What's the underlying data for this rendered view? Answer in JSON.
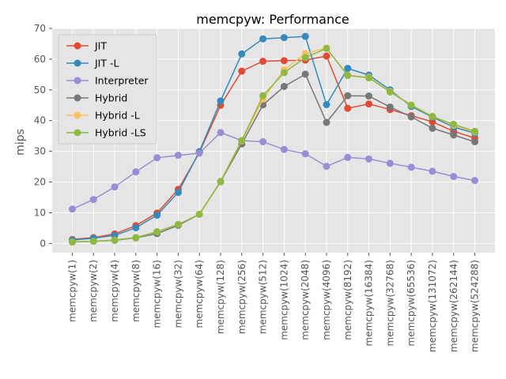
{
  "chart_data": {
    "type": "line",
    "title": "memcpyw: Performance",
    "xlabel": "",
    "ylabel": "mips",
    "ylim": [
      -3,
      70
    ],
    "yticks": [
      0,
      10,
      20,
      30,
      40,
      50,
      60,
      70
    ],
    "grid": true,
    "legend_position": "top-left",
    "categories": [
      "memcpyw(1)",
      "memcpyw(2)",
      "memcpyw(4)",
      "memcpyw(8)",
      "memcpyw(16)",
      "memcpyw(32)",
      "memcpyw(64)",
      "memcpyw(128)",
      "memcpyw(256)",
      "memcpyw(512)",
      "memcpyw(1024)",
      "memcpyw(2048)",
      "memcpyw(4096)",
      "memcpyw(8192)",
      "memcpyw(16384)",
      "memcpyw(32768)",
      "memcpyw(65536)",
      "memcpyw(131072)",
      "memcpyw(262144)",
      "memcpyw(524288)"
    ],
    "series": [
      {
        "name": "JIT",
        "color": "#E24A33",
        "values": [
          1.3,
          1.9,
          3.1,
          5.8,
          9.9,
          17.6,
          29.6,
          45.0,
          56.1,
          59.3,
          59.5,
          59.7,
          61.0,
          44.0,
          45.4,
          43.6,
          41.6,
          39.6,
          36.5,
          34.3
        ]
      },
      {
        "name": "JIT -L",
        "color": "#348ABD",
        "values": [
          1.1,
          1.7,
          2.6,
          5.1,
          9.2,
          16.6,
          29.9,
          46.4,
          61.7,
          66.6,
          67.0,
          67.4,
          45.2,
          57.0,
          54.8,
          50.0,
          44.6,
          41.1,
          37.9,
          35.9
        ]
      },
      {
        "name": "Interpreter",
        "color": "#988ED5",
        "values": [
          11.2,
          14.3,
          18.4,
          23.3,
          27.9,
          28.7,
          29.4,
          36.1,
          33.5,
          33.1,
          30.6,
          29.2,
          25.1,
          28.0,
          27.5,
          26.1,
          24.8,
          23.5,
          21.8,
          20.5
        ]
      },
      {
        "name": "Hybrid",
        "color": "#777777",
        "values": [
          0.5,
          0.7,
          1.0,
          1.8,
          3.2,
          5.9,
          9.5,
          20.1,
          32.4,
          45.1,
          51.1,
          55.1,
          39.4,
          48.1,
          48.0,
          44.4,
          41.2,
          37.5,
          35.3,
          33.1
        ]
      },
      {
        "name": "Hybrid -L",
        "color": "#FBC15E",
        "values": [
          0.5,
          0.7,
          1.1,
          1.9,
          3.8,
          6.2,
          9.5,
          20.2,
          33.4,
          47.0,
          56.5,
          61.8,
          63.6,
          54.8,
          54.1,
          49.5,
          45.1,
          41.4,
          38.5,
          36.3
        ]
      },
      {
        "name": "Hybrid -LS",
        "color": "#8EBA42",
        "values": [
          0.5,
          0.7,
          1.1,
          1.9,
          3.8,
          6.2,
          9.5,
          20.2,
          33.5,
          48.1,
          55.6,
          60.5,
          63.5,
          54.7,
          53.9,
          49.3,
          45.0,
          41.3,
          38.8,
          36.5
        ]
      }
    ]
  }
}
